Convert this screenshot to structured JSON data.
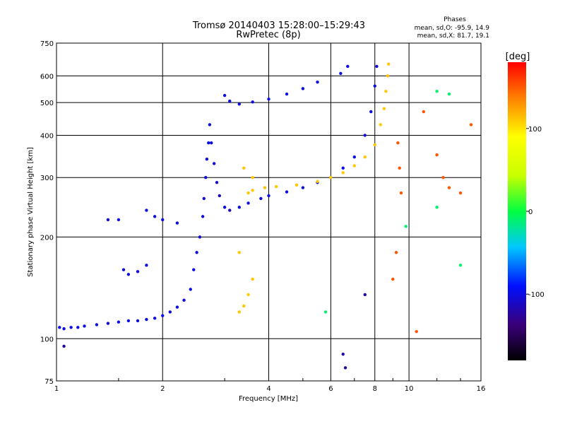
{
  "chart_data": {
    "type": "scatter",
    "title": "Tromsø 20140403 15:28:00–15:29:43",
    "subtitle": "RwPretec (8p)",
    "xlabel": "Frequency [MHz]",
    "ylabel": "Stationary phase Virtual Height [km]",
    "x_scale": "log",
    "y_scale": "log",
    "xlim": [
      1,
      16
    ],
    "ylim": [
      75,
      750
    ],
    "x_ticks": [
      1,
      2,
      4,
      6,
      8,
      10,
      16
    ],
    "x_tick_labels": [
      "1",
      "2",
      "4",
      "6",
      "8",
      "10",
      "16"
    ],
    "y_ticks": [
      75,
      100,
      200,
      300,
      400,
      500,
      600,
      750
    ],
    "y_tick_labels": [
      "75",
      "100",
      "200",
      "300",
      "400",
      "500",
      "600",
      "750"
    ],
    "grid": true,
    "info": {
      "heading": "Phases",
      "line1": "mean, sd,O: -95.9, 14.9",
      "line2": "mean, sd,X: 81.7, 19.1"
    },
    "colorbar": {
      "label": "[deg]",
      "range": [
        -180,
        180
      ],
      "ticks": [
        100,
        0,
        -100
      ],
      "tick_labels": [
        "100",
        "0",
        "-100"
      ]
    },
    "series": [
      {
        "points": [
          [
            1.02,
            108,
            -100
          ],
          [
            1.05,
            107,
            -100
          ],
          [
            1.1,
            108,
            -100
          ],
          [
            1.15,
            108,
            -98
          ],
          [
            1.2,
            109,
            -100
          ],
          [
            1.3,
            110,
            -100
          ],
          [
            1.4,
            111,
            -102
          ],
          [
            1.5,
            112,
            -100
          ],
          [
            1.6,
            113,
            -100
          ],
          [
            1.7,
            113,
            -100
          ],
          [
            1.8,
            114,
            -100
          ],
          [
            1.9,
            115,
            -100
          ],
          [
            2.0,
            117,
            -98
          ],
          [
            2.1,
            120,
            -100
          ],
          [
            2.2,
            124,
            -100
          ],
          [
            2.3,
            130,
            -100
          ],
          [
            2.4,
            140,
            -100
          ],
          [
            2.45,
            160,
            -100
          ],
          [
            2.5,
            180,
            -102
          ],
          [
            2.55,
            200,
            -100
          ],
          [
            2.6,
            230,
            -100
          ],
          [
            2.62,
            260,
            -100
          ],
          [
            2.65,
            300,
            -100
          ],
          [
            2.67,
            340,
            -100
          ],
          [
            2.7,
            380,
            -100
          ],
          [
            2.72,
            430,
            -100
          ],
          [
            2.75,
            380,
            -100
          ],
          [
            2.8,
            330,
            -100
          ],
          [
            2.85,
            290,
            -105
          ],
          [
            2.9,
            265,
            -110
          ],
          [
            3.0,
            245,
            -100
          ],
          [
            3.1,
            240,
            -110
          ],
          [
            3.3,
            245,
            -100
          ],
          [
            3.5,
            252,
            -100
          ],
          [
            3.8,
            260,
            -100
          ],
          [
            4.0,
            265,
            -98
          ],
          [
            4.5,
            272,
            -100
          ],
          [
            5.0,
            280,
            -100
          ],
          [
            5.5,
            290,
            -100
          ],
          [
            6.0,
            300,
            -100
          ],
          [
            6.5,
            320,
            -98
          ],
          [
            7.0,
            345,
            -100
          ],
          [
            7.5,
            400,
            -100
          ],
          [
            7.8,
            470,
            -100
          ],
          [
            8.0,
            560,
            -100
          ],
          [
            8.1,
            640,
            -105
          ],
          [
            1.4,
            225,
            -100
          ],
          [
            1.5,
            225,
            -100
          ],
          [
            1.8,
            240,
            -100
          ],
          [
            1.9,
            230,
            -100
          ],
          [
            2.0,
            225,
            -100
          ],
          [
            2.2,
            220,
            -100
          ],
          [
            1.55,
            160,
            -100
          ],
          [
            1.6,
            155,
            -100
          ],
          [
            1.7,
            158,
            -100
          ],
          [
            1.8,
            165,
            -100
          ],
          [
            3.0,
            525,
            -100
          ],
          [
            3.1,
            505,
            -100
          ],
          [
            3.3,
            495,
            -100
          ],
          [
            3.6,
            502,
            -100
          ],
          [
            4.0,
            512,
            -95
          ],
          [
            4.5,
            530,
            -100
          ],
          [
            5.0,
            550,
            -100
          ],
          [
            5.5,
            575,
            -100
          ],
          [
            6.4,
            610,
            -100
          ],
          [
            6.7,
            640,
            -100
          ]
        ]
      },
      {
        "points": [
          [
            3.3,
            120,
            110
          ],
          [
            3.4,
            125,
            110
          ],
          [
            3.5,
            135,
            108
          ],
          [
            3.6,
            150,
            110
          ],
          [
            3.5,
            270,
            110
          ],
          [
            3.6,
            275,
            110
          ],
          [
            3.9,
            280,
            112
          ],
          [
            4.2,
            282,
            110
          ],
          [
            4.8,
            285,
            110
          ],
          [
            5.5,
            292,
            110
          ],
          [
            6.0,
            300,
            108
          ],
          [
            6.5,
            310,
            110
          ],
          [
            7.0,
            325,
            110
          ],
          [
            7.5,
            345,
            110
          ],
          [
            8.0,
            375,
            110
          ],
          [
            8.3,
            430,
            108
          ],
          [
            8.5,
            480,
            110
          ],
          [
            8.6,
            540,
            110
          ],
          [
            8.7,
            600,
            112
          ],
          [
            8.75,
            650,
            110
          ],
          [
            3.4,
            320,
            110
          ],
          [
            3.6,
            300,
            110
          ],
          [
            3.3,
            180,
            110
          ]
        ]
      },
      {
        "points": [
          [
            9.3,
            380,
            150
          ],
          [
            9.4,
            320,
            150
          ],
          [
            9.5,
            270,
            150
          ],
          [
            11.0,
            470,
            150
          ],
          [
            12.0,
            350,
            150
          ],
          [
            12.5,
            300,
            150
          ],
          [
            13.0,
            280,
            150
          ],
          [
            14.0,
            270,
            150
          ],
          [
            15.0,
            430,
            150
          ],
          [
            9.2,
            180,
            150
          ],
          [
            10.5,
            105,
            150
          ],
          [
            9.0,
            150,
            150
          ]
        ]
      },
      {
        "points": [
          [
            12.0,
            540,
            -10
          ],
          [
            13.0,
            530,
            -10
          ],
          [
            9.8,
            215,
            -10
          ],
          [
            5.8,
            120,
            -10
          ],
          [
            12.0,
            245,
            -10
          ],
          [
            14.0,
            165,
            -10
          ]
        ]
      },
      {
        "points": [
          [
            6.5,
            90,
            -120
          ],
          [
            6.6,
            82,
            -120
          ],
          [
            7.5,
            135,
            -120
          ],
          [
            1.05,
            95,
            -120
          ]
        ]
      }
    ]
  }
}
